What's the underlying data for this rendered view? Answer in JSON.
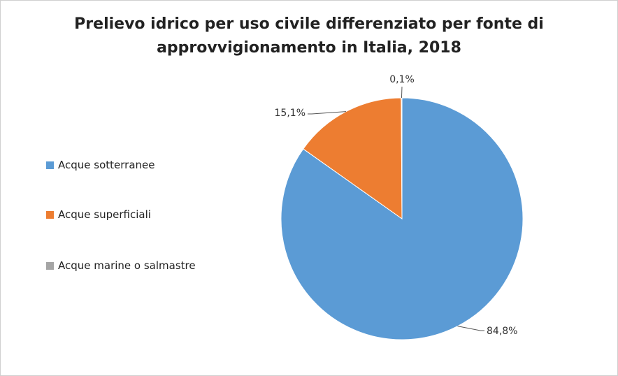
{
  "chart_data": {
    "type": "pie",
    "title": "Prelievo idrico per uso civile differenziato per fonte di approvvigionamento in Italia, 2018",
    "title_lines": [
      "Prelievo idrico per uso civile differenziato per fonte di",
      "approvvigionamento in Italia, 2018"
    ],
    "categories": [
      "Acque sotterranee",
      "Acque superficiali",
      "Acque marine o salmastre"
    ],
    "values": [
      84.8,
      15.1,
      0.1
    ],
    "data_labels": [
      "84,8%",
      "15,1%",
      "0,1%"
    ],
    "colors": [
      "#5b9bd5",
      "#ed7d31",
      "#a5a5a5"
    ],
    "legend_position": "left"
  }
}
